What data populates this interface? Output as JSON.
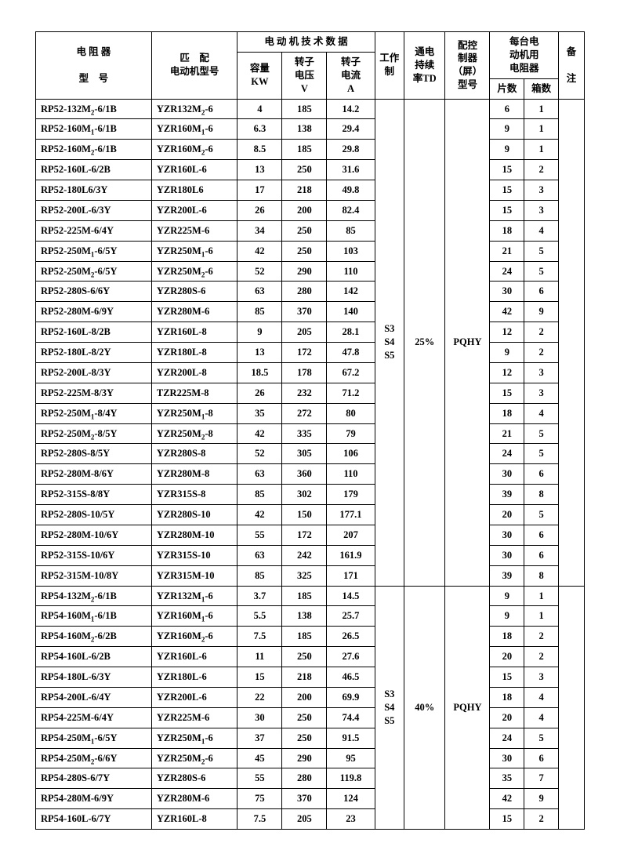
{
  "headers": {
    "resistor_model_1": "电 阻 器",
    "resistor_model_2": "型　号",
    "motor_match_1": "匹　配",
    "motor_match_2": "电动机型号",
    "motor_tech": "电 动 机 技 术 数 据",
    "capacity_1": "容量",
    "capacity_2": "KW",
    "rotor_v_1": "转子",
    "rotor_v_2": "电压",
    "rotor_v_3": "V",
    "rotor_a_1": "转子",
    "rotor_a_2": "电流",
    "rotor_a_3": "A",
    "work_system": "工作制",
    "duty_1": "通电",
    "duty_2": "持续",
    "duty_3": "率TD",
    "controller_1": "配控",
    "controller_2": "制器",
    "controller_3": "（屏）",
    "controller_4": "型号",
    "per_motor_1": "每台电",
    "per_motor_2": "动机用",
    "per_motor_3": "电阻器",
    "pieces": "片数",
    "boxes": "箱数",
    "remark_1": "备",
    "remark_2": "注"
  },
  "group1": {
    "work": "S3\nS4\nS5",
    "duty": "25%",
    "ctrl": "PQHY",
    "rows": [
      {
        "r": "RP52-132M<sub>2</sub>-6/1B",
        "m": "YZR132M<sub>2</sub>-6",
        "kw": "4",
        "v": "185",
        "a": "14.2",
        "p": "6",
        "b": "1"
      },
      {
        "r": "RP52-160M<sub>1</sub>-6/1B",
        "m": "YZR160M<sub>1</sub>-6",
        "kw": "6.3",
        "v": "138",
        "a": "29.4",
        "p": "9",
        "b": "1"
      },
      {
        "r": "RP52-160M<sub>2</sub>-6/1B",
        "m": "YZR160M<sub>2</sub>-6",
        "kw": "8.5",
        "v": "185",
        "a": "29.8",
        "p": "9",
        "b": "1"
      },
      {
        "r": "RP52-160L-6/2B",
        "m": "YZR160L-6",
        "kw": "13",
        "v": "250",
        "a": "31.6",
        "p": "15",
        "b": "2"
      },
      {
        "r": "RP52-180L6/3Y",
        "m": "YZR180L6",
        "kw": "17",
        "v": "218",
        "a": "49.8",
        "p": "15",
        "b": "3"
      },
      {
        "r": "RP52-200L-6/3Y",
        "m": "YZR200L-6",
        "kw": "26",
        "v": "200",
        "a": "82.4",
        "p": "15",
        "b": "3"
      },
      {
        "r": "RP52-225M-6/4Y",
        "m": "YZR225M-6",
        "kw": "34",
        "v": "250",
        "a": "85",
        "p": "18",
        "b": "4"
      },
      {
        "r": "RP52-250M<sub>1</sub>-6/5Y",
        "m": "YZR250M<sub>1</sub>-6",
        "kw": "42",
        "v": "250",
        "a": "103",
        "p": "21",
        "b": "5"
      },
      {
        "r": "RP52-250M<sub>2</sub>-6/5Y",
        "m": "YZR250M<sub>2</sub>-6",
        "kw": "52",
        "v": "290",
        "a": "110",
        "p": "24",
        "b": "5"
      },
      {
        "r": "RP52-280S-6/6Y",
        "m": "YZR280S-6",
        "kw": "63",
        "v": "280",
        "a": "142",
        "p": "30",
        "b": "6"
      },
      {
        "r": "RP52-280M-6/9Y",
        "m": "YZR280M-6",
        "kw": "85",
        "v": "370",
        "a": "140",
        "p": "42",
        "b": "9"
      },
      {
        "r": "RP52-160L-8/2B",
        "m": "YZR160L-8",
        "kw": "9",
        "v": "205",
        "a": "28.1",
        "p": "12",
        "b": "2"
      },
      {
        "r": "RP52-180L-8/2Y",
        "m": "YZR180L-8",
        "kw": "13",
        "v": "172",
        "a": "47.8",
        "p": "9",
        "b": "2"
      },
      {
        "r": "RP52-200L-8/3Y",
        "m": "YZR200L-8",
        "kw": "18.5",
        "v": "178",
        "a": "67.2",
        "p": "12",
        "b": "3"
      },
      {
        "r": "RP52-225M-8/3Y",
        "m": "TZR225M-8",
        "kw": "26",
        "v": "232",
        "a": "71.2",
        "p": "15",
        "b": "3"
      },
      {
        "r": "RP52-250M<sub>1</sub>-8/4Y",
        "m": "YZR250M<sub>1</sub>-8",
        "kw": "35",
        "v": "272",
        "a": "80",
        "p": "18",
        "b": "4"
      },
      {
        "r": "RP52-250M<sub>2</sub>-8/5Y",
        "m": "YZR250M<sub>2</sub>-8",
        "kw": "42",
        "v": "335",
        "a": "79",
        "p": "21",
        "b": "5"
      },
      {
        "r": "RP52-280S-8/5Y",
        "m": "YZR280S-8",
        "kw": "52",
        "v": "305",
        "a": "106",
        "p": "24",
        "b": "5"
      },
      {
        "r": "RP52-280M-8/6Y",
        "m": "YZR280M-8",
        "kw": "63",
        "v": "360",
        "a": "110",
        "p": "30",
        "b": "6"
      },
      {
        "r": "RP52-315S-8/8Y",
        "m": "YZR315S-8",
        "kw": "85",
        "v": "302",
        "a": "179",
        "p": "39",
        "b": "8"
      },
      {
        "r": "RP52-280S-10/5Y",
        "m": "YZR280S-10",
        "kw": "42",
        "v": "150",
        "a": "177.1",
        "p": "20",
        "b": "5"
      },
      {
        "r": "RP52-280M-10/6Y",
        "m": "YZR280M-10",
        "kw": "55",
        "v": "172",
        "a": "207",
        "p": "30",
        "b": "6"
      },
      {
        "r": "RP52-315S-10/6Y",
        "m": "YZR315S-10",
        "kw": "63",
        "v": "242",
        "a": "161.9",
        "p": "30",
        "b": "6"
      },
      {
        "r": "RP52-315M-10/8Y",
        "m": "YZR315M-10",
        "kw": "85",
        "v": "325",
        "a": "171",
        "p": "39",
        "b": "8"
      }
    ]
  },
  "group2": {
    "work": "S3\nS4\nS5",
    "duty": "40%",
    "ctrl": "PQHY",
    "rows": [
      {
        "r": "RP54-132M<sub>2</sub>-6/1B",
        "m": "YZR132M<sub>1</sub>-6",
        "kw": "3.7",
        "v": "185",
        "a": "14.5",
        "p": "9",
        "b": "1"
      },
      {
        "r": "RP54-160M<sub>1</sub>-6/1B",
        "m": "YZR160M<sub>1</sub>-6",
        "kw": "5.5",
        "v": "138",
        "a": "25.7",
        "p": "9",
        "b": "1"
      },
      {
        "r": "RP54-160M<sub>2</sub>-6/2B",
        "m": "YZR160M<sub>2</sub>-6",
        "kw": "7.5",
        "v": "185",
        "a": "26.5",
        "p": "18",
        "b": "2"
      },
      {
        "r": "RP54-160L-6/2B",
        "m": "YZR160L-6",
        "kw": "11",
        "v": "250",
        "a": "27.6",
        "p": "20",
        "b": "2"
      },
      {
        "r": "RP54-180L-6/3Y",
        "m": "YZR180L-6",
        "kw": "15",
        "v": "218",
        "a": "46.5",
        "p": "15",
        "b": "3"
      },
      {
        "r": "RP54-200L-6/4Y",
        "m": "YZR200L-6",
        "kw": "22",
        "v": "200",
        "a": "69.9",
        "p": "18",
        "b": "4"
      },
      {
        "r": "RP54-225M-6/4Y",
        "m": "YZR225M-6",
        "kw": "30",
        "v": "250",
        "a": "74.4",
        "p": "20",
        "b": "4"
      },
      {
        "r": "RP54-250M<sub>1</sub>-6/5Y",
        "m": "YZR250M<sub>1</sub>-6",
        "kw": "37",
        "v": "250",
        "a": "91.5",
        "p": "24",
        "b": "5"
      },
      {
        "r": "RP54-250M<sub>2</sub>-6/6Y",
        "m": "YZR250M<sub>2</sub>-6",
        "kw": "45",
        "v": "290",
        "a": "95",
        "p": "30",
        "b": "6"
      },
      {
        "r": "RP54-280S-6/7Y",
        "m": "YZR280S-6",
        "kw": "55",
        "v": "280",
        "a": "119.8",
        "p": "35",
        "b": "7"
      },
      {
        "r": "RP54-280M-6/9Y",
        "m": "YZR280M-6",
        "kw": "75",
        "v": "370",
        "a": "124",
        "p": "42",
        "b": "9"
      },
      {
        "r": "RP54-160L-6/7Y",
        "m": "YZR160L-8",
        "kw": "7.5",
        "v": "205",
        "a": "23",
        "p": "15",
        "b": "2"
      }
    ]
  }
}
